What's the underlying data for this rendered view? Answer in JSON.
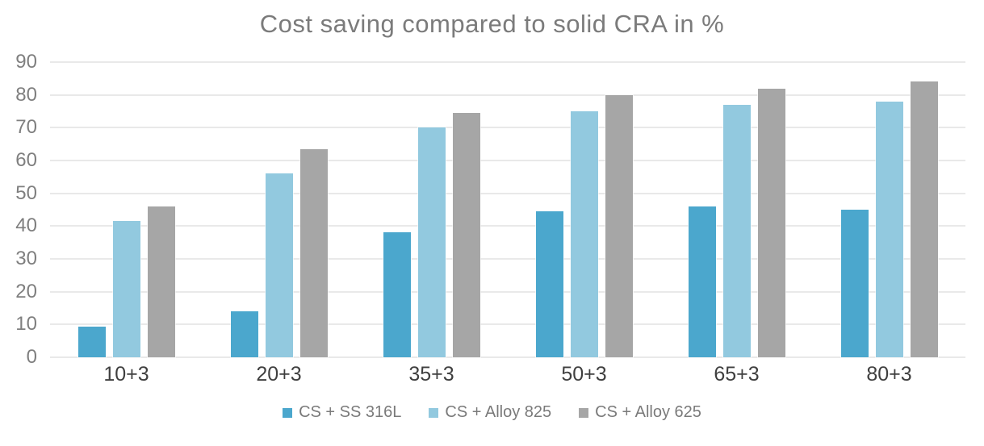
{
  "chart_data": {
    "type": "bar",
    "title": "Cost saving compared to solid CRA in %",
    "categories": [
      "10+3",
      "20+3",
      "35+3",
      "50+3",
      "65+3",
      "80+3"
    ],
    "series": [
      {
        "name": "CS + SS 316L",
        "color": "#4BA7CD",
        "values": [
          9.3,
          14,
          38,
          44.5,
          46,
          45
        ]
      },
      {
        "name": "CS + Alloy 825",
        "color": "#92C9DF",
        "values": [
          41.5,
          56,
          70,
          75,
          77,
          78
        ]
      },
      {
        "name": "CS + Alloy 625",
        "color": "#A6A6A6",
        "values": [
          46,
          63.5,
          74.5,
          80,
          82,
          84
        ]
      }
    ],
    "xlabel": "",
    "ylabel": "",
    "ylim": [
      0,
      90
    ],
    "ytick_step": 10,
    "grid": true,
    "legend_position": "bottom",
    "colors": {
      "title": "#7b7b7b",
      "y_tick_labels": "#7f7f7f",
      "x_tick_labels": "#3f3f3f",
      "gridline": "#e9e9e9",
      "background": "#ffffff"
    }
  }
}
